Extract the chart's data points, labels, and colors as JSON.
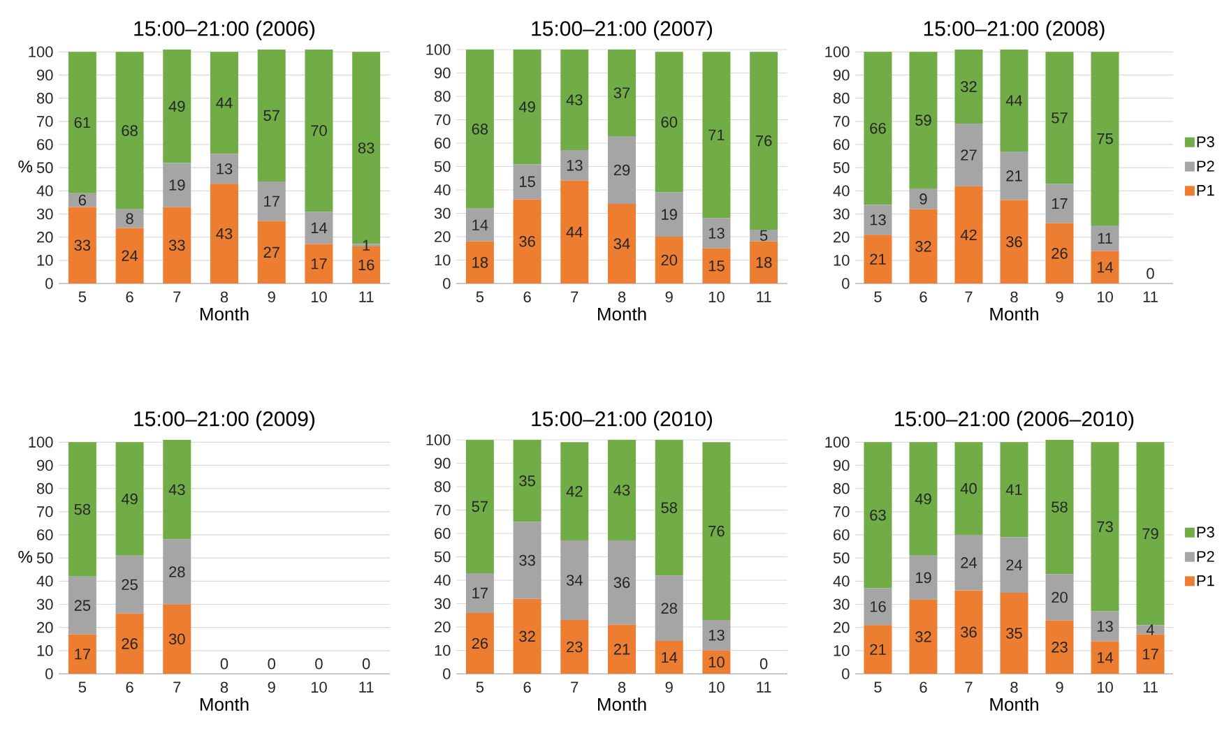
{
  "chart_data": [
    {
      "type": "bar",
      "title": "15:00–21:00 (2006)",
      "xlabel": "Month",
      "ylabel": "%",
      "categories": [
        "5",
        "6",
        "7",
        "8",
        "9",
        "10",
        "11"
      ],
      "stacked": true,
      "ylim": [
        0,
        101
      ],
      "yticks": [
        0,
        10,
        20,
        30,
        40,
        50,
        60,
        70,
        80,
        90,
        100
      ],
      "grid": "y",
      "series": [
        {
          "color": "#ed7d31",
          "values": [
            33,
            24,
            33,
            43,
            27,
            17,
            16
          ],
          "value_labels": [
            "33",
            "24",
            "33",
            "43",
            "27",
            "17",
            "16"
          ]
        },
        {
          "color": "#a5a5a5",
          "values": [
            6,
            8,
            19,
            13,
            17,
            14,
            1
          ],
          "value_labels": [
            "6",
            "8",
            "19",
            "13",
            "17",
            "14",
            "1"
          ]
        },
        {
          "color": "#70ad47",
          "values": [
            61,
            68,
            49,
            44,
            57,
            70,
            83
          ],
          "value_labels": [
            "61",
            "68",
            "49",
            "44",
            "57",
            "70",
            "83"
          ]
        }
      ]
    },
    {
      "type": "bar",
      "title": "15:00–21:00 (2007)",
      "xlabel": "Month",
      "categories": [
        "5",
        "6",
        "7",
        "8",
        "9",
        "10",
        "11"
      ],
      "stacked": true,
      "ylim": [
        0,
        100
      ],
      "yticks": [
        0,
        10,
        20,
        30,
        40,
        50,
        60,
        70,
        80,
        90,
        100
      ],
      "grid": "y",
      "series": [
        {
          "color": "#ed7d31",
          "values": [
            18,
            36,
            44,
            34,
            20,
            15,
            18
          ],
          "value_labels": [
            "18",
            "36",
            "44",
            "34",
            "20",
            "15",
            "18"
          ]
        },
        {
          "color": "#a5a5a5",
          "values": [
            14,
            15,
            13,
            29,
            19,
            13,
            5
          ],
          "value_labels": [
            "14",
            "15",
            "13",
            "29",
            "19",
            "13",
            "5"
          ]
        },
        {
          "color": "#70ad47",
          "values": [
            68,
            49,
            43,
            37,
            60,
            71,
            76
          ],
          "value_labels": [
            "68",
            "49",
            "43",
            "37",
            "60",
            "71",
            "76"
          ]
        }
      ]
    },
    {
      "type": "bar",
      "title": "15:00–21:00 (2008)",
      "xlabel": "Month",
      "categories": [
        "5",
        "6",
        "7",
        "8",
        "9",
        "10",
        "11"
      ],
      "stacked": true,
      "ylim": [
        0,
        101
      ],
      "yticks": [
        0,
        10,
        20,
        30,
        40,
        50,
        60,
        70,
        80,
        90,
        100
      ],
      "grid": "y",
      "legend": "right",
      "series": [
        {
          "name": "P1",
          "color": "#ed7d31",
          "values": [
            21,
            32,
            42,
            36,
            26,
            14,
            0
          ],
          "value_labels": [
            "21",
            "32",
            "42",
            "36",
            "26",
            "14",
            "0"
          ]
        },
        {
          "name": "P2",
          "color": "#a5a5a5",
          "values": [
            13,
            9,
            27,
            21,
            17,
            11,
            0
          ],
          "value_labels": [
            "13",
            "9",
            "27",
            "21",
            "17",
            "11",
            null
          ]
        },
        {
          "name": "P3",
          "color": "#70ad47",
          "values": [
            66,
            59,
            32,
            44,
            57,
            75,
            0
          ],
          "value_labels": [
            "66",
            "59",
            "32",
            "44",
            "57",
            "75",
            null
          ]
        }
      ]
    },
    {
      "type": "bar",
      "title": "15:00–21:00 (2009)",
      "xlabel": "Month",
      "ylabel": "%",
      "categories": [
        "5",
        "6",
        "7",
        "8",
        "9",
        "10",
        "11"
      ],
      "stacked": true,
      "ylim": [
        0,
        101
      ],
      "yticks": [
        0,
        10,
        20,
        30,
        40,
        50,
        60,
        70,
        80,
        90,
        100
      ],
      "grid": "y",
      "series": [
        {
          "color": "#ed7d31",
          "values": [
            17,
            26,
            30,
            0,
            0,
            0,
            0
          ],
          "value_labels": [
            "17",
            "26",
            "30",
            "0",
            "0",
            "0",
            "0"
          ]
        },
        {
          "color": "#a5a5a5",
          "values": [
            25,
            25,
            28,
            0,
            0,
            0,
            0
          ],
          "value_labels": [
            "25",
            "25",
            "28",
            null,
            null,
            null,
            null
          ]
        },
        {
          "color": "#70ad47",
          "values": [
            58,
            49,
            43,
            0,
            0,
            0,
            0
          ],
          "value_labels": [
            "58",
            "49",
            "43",
            null,
            null,
            null,
            null
          ]
        }
      ]
    },
    {
      "type": "bar",
      "title": "15:00–21:00 (2010)",
      "xlabel": "Month",
      "categories": [
        "5",
        "6",
        "7",
        "8",
        "9",
        "10",
        "11"
      ],
      "stacked": true,
      "ylim": [
        0,
        100
      ],
      "yticks": [
        0,
        10,
        20,
        30,
        40,
        50,
        60,
        70,
        80,
        90,
        100
      ],
      "grid": "y",
      "series": [
        {
          "color": "#ed7d31",
          "values": [
            26,
            32,
            23,
            21,
            14,
            10,
            0
          ],
          "value_labels": [
            "26",
            "32",
            "23",
            "21",
            "14",
            "10",
            "0"
          ]
        },
        {
          "color": "#a5a5a5",
          "values": [
            17,
            33,
            34,
            36,
            28,
            13,
            0
          ],
          "value_labels": [
            "17",
            "33",
            "34",
            "36",
            "28",
            "13",
            null
          ]
        },
        {
          "color": "#70ad47",
          "values": [
            57,
            35,
            42,
            43,
            58,
            76,
            0
          ],
          "value_labels": [
            "57",
            "35",
            "42",
            "43",
            "58",
            "76",
            null
          ]
        }
      ]
    },
    {
      "type": "bar",
      "title": "15:00–21:00 (2006–2010)",
      "xlabel": "Month",
      "categories": [
        "5",
        "6",
        "7",
        "8",
        "9",
        "10",
        "11"
      ],
      "stacked": true,
      "ylim": [
        0,
        101
      ],
      "yticks": [
        0,
        10,
        20,
        30,
        40,
        50,
        60,
        70,
        80,
        90,
        100
      ],
      "grid": "y",
      "legend": "right",
      "series": [
        {
          "name": "P1",
          "color": "#ed7d31",
          "values": [
            21,
            32,
            36,
            35,
            23,
            14,
            17
          ],
          "value_labels": [
            "21",
            "32",
            "36",
            "35",
            "23",
            "14",
            "17"
          ]
        },
        {
          "name": "P2",
          "color": "#a5a5a5",
          "values": [
            16,
            19,
            24,
            24,
            20,
            13,
            4
          ],
          "value_labels": [
            "16",
            "19",
            "24",
            "24",
            "20",
            "13",
            "4"
          ]
        },
        {
          "name": "P3",
          "color": "#70ad47",
          "values": [
            63,
            49,
            40,
            41,
            58,
            73,
            79
          ],
          "value_labels": [
            "63",
            "49",
            "40",
            "41",
            "58",
            "73",
            "79"
          ]
        }
      ]
    }
  ]
}
